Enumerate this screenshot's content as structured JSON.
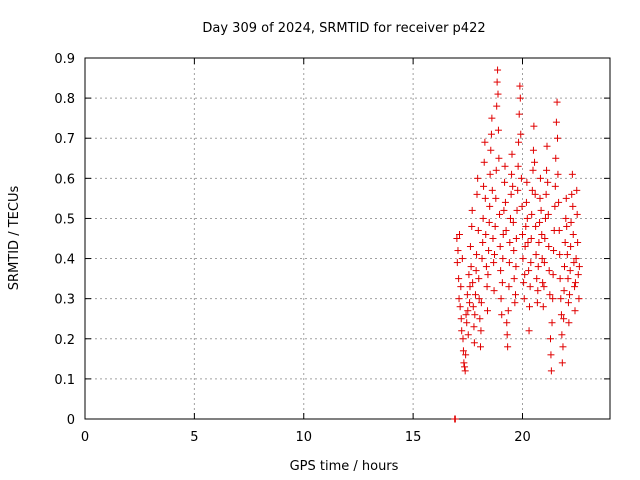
{
  "chart_data": {
    "type": "scatter",
    "title": "Day 309 of 2024, SRMTID for receiver p422",
    "xlabel": "GPS time / hours",
    "ylabel": "SRMTID / TECUs",
    "xlim": [
      0,
      24.0
    ],
    "ylim": [
      0,
      0.9
    ],
    "xticks": [
      0,
      5,
      10,
      15,
      20
    ],
    "xtick_labels": [
      "0",
      "5",
      "10",
      "15",
      "20"
    ],
    "yticks": [
      0,
      0.1,
      0.2,
      0.3,
      0.4,
      0.5,
      0.6,
      0.7,
      0.8,
      0.9
    ],
    "ytick_labels": [
      "0",
      "0.1",
      "0.2",
      "0.3",
      "0.4",
      "0.5",
      "0.6",
      "0.7",
      "0.8",
      "0.9"
    ],
    "grid": true,
    "marker": "+",
    "color": "#e00000",
    "series": [
      {
        "name": "SRMTID",
        "points": [
          [
            16.9,
            0.0
          ],
          [
            16.93,
            0.0
          ],
          [
            17.0,
            0.45
          ],
          [
            17.02,
            0.39
          ],
          [
            17.05,
            0.42
          ],
          [
            17.08,
            0.35
          ],
          [
            17.1,
            0.3
          ],
          [
            17.12,
            0.46
          ],
          [
            17.15,
            0.28
          ],
          [
            17.18,
            0.33
          ],
          [
            17.2,
            0.25
          ],
          [
            17.22,
            0.22
          ],
          [
            17.25,
            0.4
          ],
          [
            17.28,
            0.2
          ],
          [
            17.3,
            0.17
          ],
          [
            17.32,
            0.14
          ],
          [
            17.35,
            0.13
          ],
          [
            17.38,
            0.12
          ],
          [
            17.4,
            0.16
          ],
          [
            17.42,
            0.26
          ],
          [
            17.45,
            0.24
          ],
          [
            17.48,
            0.31
          ],
          [
            17.5,
            0.27
          ],
          [
            17.52,
            0.21
          ],
          [
            17.55,
            0.36
          ],
          [
            17.58,
            0.29
          ],
          [
            17.6,
            0.33
          ],
          [
            17.62,
            0.43
          ],
          [
            17.65,
            0.38
          ],
          [
            17.68,
            0.48
          ],
          [
            17.7,
            0.52
          ],
          [
            17.72,
            0.34
          ],
          [
            17.75,
            0.28
          ],
          [
            17.78,
            0.23
          ],
          [
            17.8,
            0.19
          ],
          [
            17.82,
            0.26
          ],
          [
            17.85,
            0.31
          ],
          [
            17.88,
            0.37
          ],
          [
            17.9,
            0.41
          ],
          [
            17.92,
            0.56
          ],
          [
            17.95,
            0.6
          ],
          [
            17.98,
            0.47
          ],
          [
            18.0,
            0.35
          ],
          [
            18.02,
            0.3
          ],
          [
            18.05,
            0.25
          ],
          [
            18.08,
            0.18
          ],
          [
            18.1,
            0.22
          ],
          [
            18.12,
            0.29
          ],
          [
            18.15,
            0.4
          ],
          [
            18.18,
            0.44
          ],
          [
            18.2,
            0.5
          ],
          [
            18.22,
            0.58
          ],
          [
            18.25,
            0.64
          ],
          [
            18.28,
            0.69
          ],
          [
            18.3,
            0.55
          ],
          [
            18.32,
            0.46
          ],
          [
            18.35,
            0.38
          ],
          [
            18.38,
            0.33
          ],
          [
            18.4,
            0.27
          ],
          [
            18.42,
            0.36
          ],
          [
            18.45,
            0.42
          ],
          [
            18.48,
            0.49
          ],
          [
            18.5,
            0.53
          ],
          [
            18.52,
            0.61
          ],
          [
            18.55,
            0.67
          ],
          [
            18.58,
            0.71
          ],
          [
            18.6,
            0.75
          ],
          [
            18.62,
            0.57
          ],
          [
            18.65,
            0.45
          ],
          [
            18.68,
            0.39
          ],
          [
            18.7,
            0.32
          ],
          [
            18.72,
            0.41
          ],
          [
            18.75,
            0.48
          ],
          [
            18.78,
            0.55
          ],
          [
            18.8,
            0.62
          ],
          [
            18.82,
            0.78
          ],
          [
            18.84,
            0.84
          ],
          [
            18.86,
            0.87
          ],
          [
            18.88,
            0.81
          ],
          [
            18.9,
            0.72
          ],
          [
            18.92,
            0.65
          ],
          [
            18.95,
            0.51
          ],
          [
            18.98,
            0.43
          ],
          [
            19.0,
            0.37
          ],
          [
            19.02,
            0.3
          ],
          [
            19.05,
            0.26
          ],
          [
            19.08,
            0.34
          ],
          [
            19.1,
            0.4
          ],
          [
            19.12,
            0.46
          ],
          [
            19.15,
            0.52
          ],
          [
            19.18,
            0.59
          ],
          [
            19.2,
            0.63
          ],
          [
            19.22,
            0.54
          ],
          [
            19.25,
            0.47
          ],
          [
            19.28,
            0.24
          ],
          [
            19.3,
            0.21
          ],
          [
            19.32,
            0.18
          ],
          [
            19.35,
            0.27
          ],
          [
            19.38,
            0.33
          ],
          [
            19.4,
            0.39
          ],
          [
            19.42,
            0.44
          ],
          [
            19.45,
            0.5
          ],
          [
            19.48,
            0.56
          ],
          [
            19.5,
            0.61
          ],
          [
            19.52,
            0.66
          ],
          [
            19.55,
            0.58
          ],
          [
            19.58,
            0.49
          ],
          [
            19.6,
            0.42
          ],
          [
            19.62,
            0.35
          ],
          [
            19.65,
            0.29
          ],
          [
            19.68,
            0.31
          ],
          [
            19.7,
            0.38
          ],
          [
            19.72,
            0.45
          ],
          [
            19.75,
            0.52
          ],
          [
            19.78,
            0.57
          ],
          [
            19.8,
            0.63
          ],
          [
            19.82,
            0.69
          ],
          [
            19.85,
            0.76
          ],
          [
            19.88,
            0.83
          ],
          [
            19.9,
            0.8
          ],
          [
            19.92,
            0.71
          ],
          [
            19.95,
            0.6
          ],
          [
            19.98,
            0.53
          ],
          [
            20.0,
            0.46
          ],
          [
            20.02,
            0.4
          ],
          [
            20.05,
            0.34
          ],
          [
            20.08,
            0.3
          ],
          [
            20.1,
            0.36
          ],
          [
            20.12,
            0.43
          ],
          [
            20.15,
            0.48
          ],
          [
            20.18,
            0.54
          ],
          [
            20.2,
            0.59
          ],
          [
            20.22,
            0.5
          ],
          [
            20.25,
            0.44
          ],
          [
            20.28,
            0.37
          ],
          [
            20.3,
            0.22
          ],
          [
            20.32,
            0.28
          ],
          [
            20.35,
            0.33
          ],
          [
            20.38,
            0.39
          ],
          [
            20.4,
            0.45
          ],
          [
            20.42,
            0.51
          ],
          [
            20.45,
            0.57
          ],
          [
            20.48,
            0.62
          ],
          [
            20.5,
            0.67
          ],
          [
            20.52,
            0.73
          ],
          [
            20.55,
            0.64
          ],
          [
            20.58,
            0.56
          ],
          [
            20.6,
            0.48
          ],
          [
            20.62,
            0.41
          ],
          [
            20.65,
            0.35
          ],
          [
            20.68,
            0.29
          ],
          [
            20.7,
            0.32
          ],
          [
            20.72,
            0.38
          ],
          [
            20.75,
            0.44
          ],
          [
            20.78,
            0.49
          ],
          [
            20.8,
            0.55
          ],
          [
            20.82,
            0.6
          ],
          [
            20.85,
            0.52
          ],
          [
            20.88,
            0.46
          ],
          [
            20.9,
            0.4
          ],
          [
            20.92,
            0.34
          ],
          [
            20.95,
            0.28
          ],
          [
            20.98,
            0.33
          ],
          [
            21.0,
            0.39
          ],
          [
            21.02,
            0.45
          ],
          [
            21.05,
            0.5
          ],
          [
            21.08,
            0.56
          ],
          [
            21.1,
            0.62
          ],
          [
            21.12,
            0.68
          ],
          [
            21.15,
            0.59
          ],
          [
            21.18,
            0.51
          ],
          [
            21.2,
            0.43
          ],
          [
            21.22,
            0.37
          ],
          [
            21.25,
            0.31
          ],
          [
            21.28,
            0.2
          ],
          [
            21.3,
            0.16
          ],
          [
            21.32,
            0.12
          ],
          [
            21.35,
            0.24
          ],
          [
            21.38,
            0.3
          ],
          [
            21.4,
            0.36
          ],
          [
            21.42,
            0.42
          ],
          [
            21.45,
            0.47
          ],
          [
            21.48,
            0.53
          ],
          [
            21.5,
            0.58
          ],
          [
            21.52,
            0.65
          ],
          [
            21.55,
            0.74
          ],
          [
            21.58,
            0.79
          ],
          [
            21.6,
            0.7
          ],
          [
            21.62,
            0.61
          ],
          [
            21.65,
            0.54
          ],
          [
            21.68,
            0.47
          ],
          [
            21.7,
            0.41
          ],
          [
            21.72,
            0.35
          ],
          [
            21.75,
            0.3
          ],
          [
            21.78,
            0.26
          ],
          [
            21.8,
            0.21
          ],
          [
            21.82,
            0.14
          ],
          [
            21.85,
            0.18
          ],
          [
            21.88,
            0.25
          ],
          [
            21.9,
            0.32
          ],
          [
            21.92,
            0.38
          ],
          [
            21.95,
            0.44
          ],
          [
            21.98,
            0.5
          ],
          [
            22.0,
            0.55
          ],
          [
            22.02,
            0.48
          ],
          [
            22.05,
            0.41
          ],
          [
            22.08,
            0.35
          ],
          [
            22.1,
            0.29
          ],
          [
            22.12,
            0.24
          ],
          [
            22.15,
            0.31
          ],
          [
            22.18,
            0.37
          ],
          [
            22.2,
            0.43
          ],
          [
            22.22,
            0.49
          ],
          [
            22.25,
            0.56
          ],
          [
            22.28,
            0.61
          ],
          [
            22.3,
            0.53
          ],
          [
            22.32,
            0.46
          ],
          [
            22.35,
            0.39
          ],
          [
            22.38,
            0.33
          ],
          [
            22.4,
            0.27
          ],
          [
            22.42,
            0.34
          ],
          [
            22.45,
            0.4
          ],
          [
            22.48,
            0.57
          ],
          [
            22.5,
            0.51
          ],
          [
            22.52,
            0.44
          ],
          [
            22.55,
            0.36
          ],
          [
            22.58,
            0.3
          ],
          [
            22.6,
            0.38
          ]
        ]
      }
    ]
  }
}
